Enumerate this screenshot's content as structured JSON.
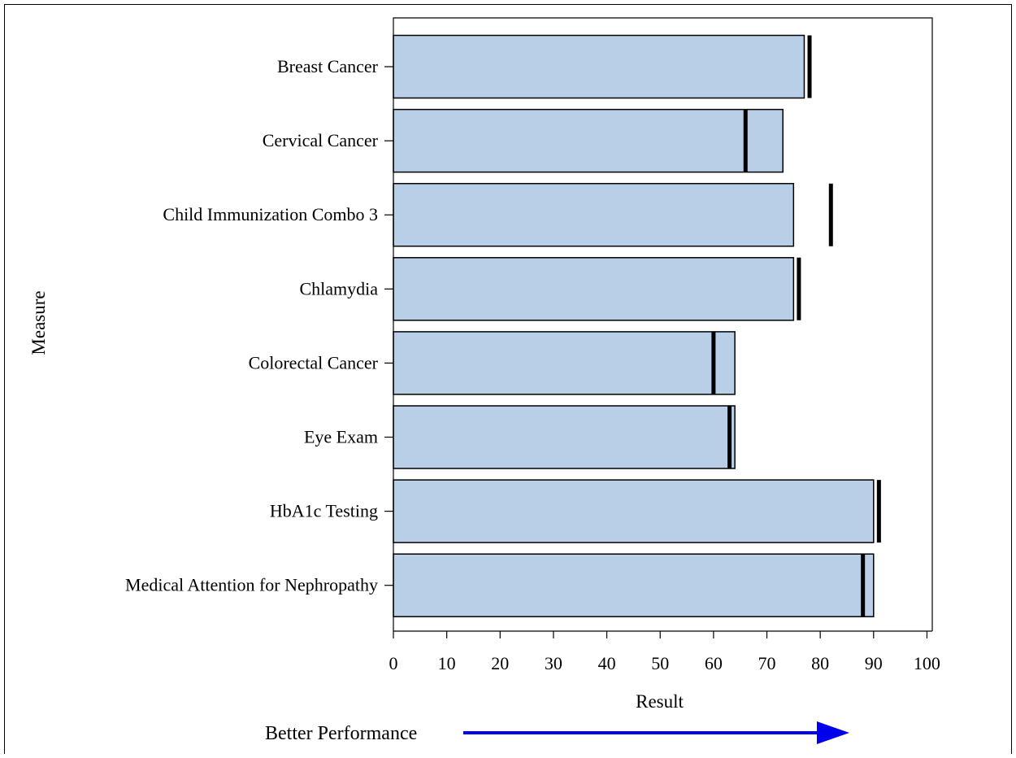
{
  "chart_data": {
    "type": "bar",
    "orientation": "horizontal",
    "categories": [
      "Breast Cancer",
      "Cervical Cancer",
      "Child Immunization Combo 3",
      "Chlamydia",
      "Colorectal Cancer",
      "Eye Exam",
      "HbA1c Testing",
      "Medical Attention for Nephropathy"
    ],
    "series": [
      {
        "values": [
          77,
          73,
          75,
          75,
          64,
          64,
          90,
          90
        ]
      }
    ],
    "benchmarks": [
      78,
      66,
      82,
      76,
      60,
      63,
      91,
      88
    ],
    "xlabel": "Result",
    "ylabel": "Measure",
    "xlim": [
      0,
      101
    ],
    "xticks": [
      0,
      10,
      20,
      30,
      40,
      50,
      60,
      70,
      80,
      90,
      100
    ],
    "grid": false,
    "annotation": "Better Performance",
    "colors": {
      "bar_fill": "#b9cfe8",
      "bar_stroke": "#000000",
      "benchmark": "#000000",
      "arrow": "#0000ee"
    }
  }
}
